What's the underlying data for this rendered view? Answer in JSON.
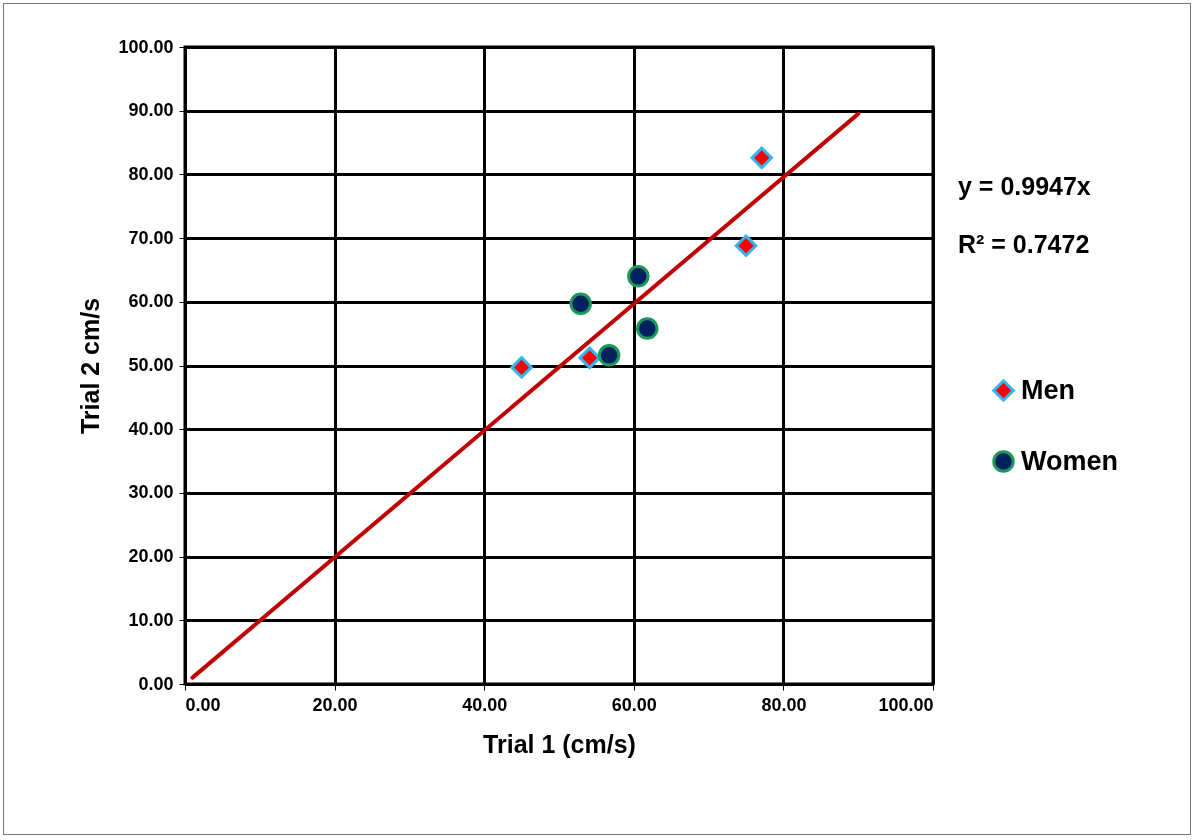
{
  "chart_data": {
    "type": "scatter",
    "xlabel": "Trial 1 (cm/s)",
    "ylabel": "Trial 2 cm/s",
    "xlim": [
      0,
      100
    ],
    "ylim": [
      0,
      100
    ],
    "xticks": [
      {
        "value": 0,
        "label": "0.00"
      },
      {
        "value": 20,
        "label": "20.00"
      },
      {
        "value": 40,
        "label": "40.00"
      },
      {
        "value": 60,
        "label": "60.00"
      },
      {
        "value": 80,
        "label": "80.00"
      },
      {
        "value": 100,
        "label": "100.00"
      }
    ],
    "yticks": [
      {
        "value": 0,
        "label": "0.00"
      },
      {
        "value": 10,
        "label": "10.00"
      },
      {
        "value": 20,
        "label": "20.00"
      },
      {
        "value": 30,
        "label": "30.00"
      },
      {
        "value": 40,
        "label": "40.00"
      },
      {
        "value": 50,
        "label": "50.00"
      },
      {
        "value": 60,
        "label": "60.00"
      },
      {
        "value": 70,
        "label": "70.00"
      },
      {
        "value": 80,
        "label": "80.00"
      },
      {
        "value": 90,
        "label": "90.00"
      },
      {
        "value": 100,
        "label": "100.00"
      }
    ],
    "grid": true,
    "legend": "right",
    "annotations": [
      "y = 0.9947x",
      "R² = 0.7472"
    ],
    "series": [
      {
        "name": "Men",
        "type": "scatter",
        "marker": "diamond",
        "color": "#ff0000",
        "x": [
          45.0,
          54.1,
          75.0,
          77.1
        ],
        "values": [
          49.7,
          51.2,
          68.8,
          82.6
        ]
      },
      {
        "name": "Women",
        "type": "scatter",
        "marker": "circle",
        "color": "#002060",
        "x": [
          52.9,
          56.7,
          60.6,
          61.8
        ],
        "values": [
          59.7,
          51.6,
          64.0,
          55.8
        ]
      },
      {
        "type": "line",
        "marker": "none",
        "color": "#c00000",
        "x": [
          1,
          90
        ],
        "values": [
          1,
          89.5
        ]
      }
    ]
  }
}
